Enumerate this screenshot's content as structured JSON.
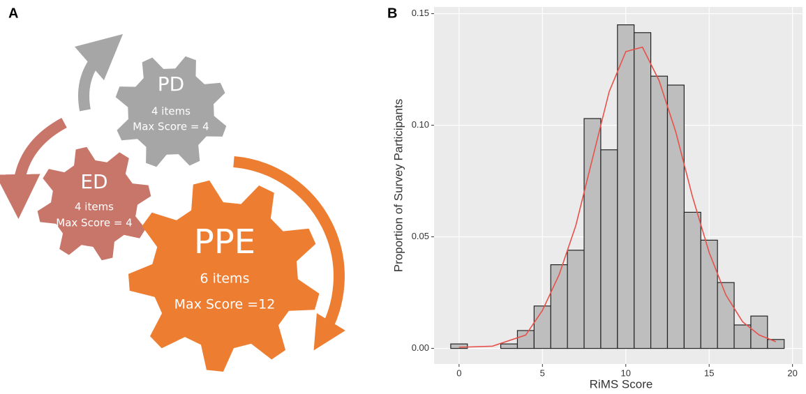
{
  "panels": {
    "a": "A",
    "b": "B"
  },
  "diagram": {
    "gears": [
      {
        "name": "PD",
        "items": "4 items",
        "max": "Max Score = 4"
      },
      {
        "name": "ED",
        "items": "4 items",
        "max": "Max Score = 4"
      },
      {
        "name": "PPE",
        "items": "6 items",
        "max": "Max Score =12"
      }
    ]
  },
  "chart_data": {
    "type": "histogram",
    "x_label": "RiMS Score",
    "y_label": "Proportion of Survey Participants",
    "bins": [
      -0.5,
      0.5,
      1.5,
      2.5,
      3.5,
      4.5,
      5.5,
      6.5,
      7.5,
      8.5,
      9.5,
      10.5,
      11.5,
      12.5,
      13.5,
      14.5,
      15.5,
      16.5,
      17.5,
      18.5,
      19.5
    ],
    "values": [
      0.002,
      0,
      0,
      0.002,
      0.008,
      0.019,
      0.0375,
      0.044,
      0.103,
      0.089,
      0.145,
      0.1415,
      0.122,
      0.118,
      0.061,
      0.0485,
      0.0295,
      0.0105,
      0.0145,
      0.004
    ],
    "color": "#bebebe",
    "density": {
      "color": "#e8514a",
      "x": [
        0,
        2,
        4,
        5,
        6,
        7,
        8,
        9,
        10,
        11,
        12,
        13,
        14,
        15,
        16,
        17,
        18,
        19
      ],
      "values": [
        0.0005,
        0.001,
        0.006,
        0.017,
        0.033,
        0.055,
        0.085,
        0.115,
        0.133,
        0.135,
        0.12,
        0.097,
        0.068,
        0.043,
        0.024,
        0.012,
        0.006,
        0.003
      ]
    },
    "xlim": [
      -1.5,
      20.6
    ],
    "ylim": [
      -0.007,
      0.153
    ],
    "xticks": [
      0,
      5,
      10,
      15,
      20
    ],
    "yticks": [
      {
        "value": 0,
        "label": "0.00"
      },
      {
        "value": 0.05,
        "label": "0.05"
      },
      {
        "value": 0.1,
        "label": "0.10"
      },
      {
        "value": 0.15,
        "label": "0.15"
      }
    ]
  }
}
